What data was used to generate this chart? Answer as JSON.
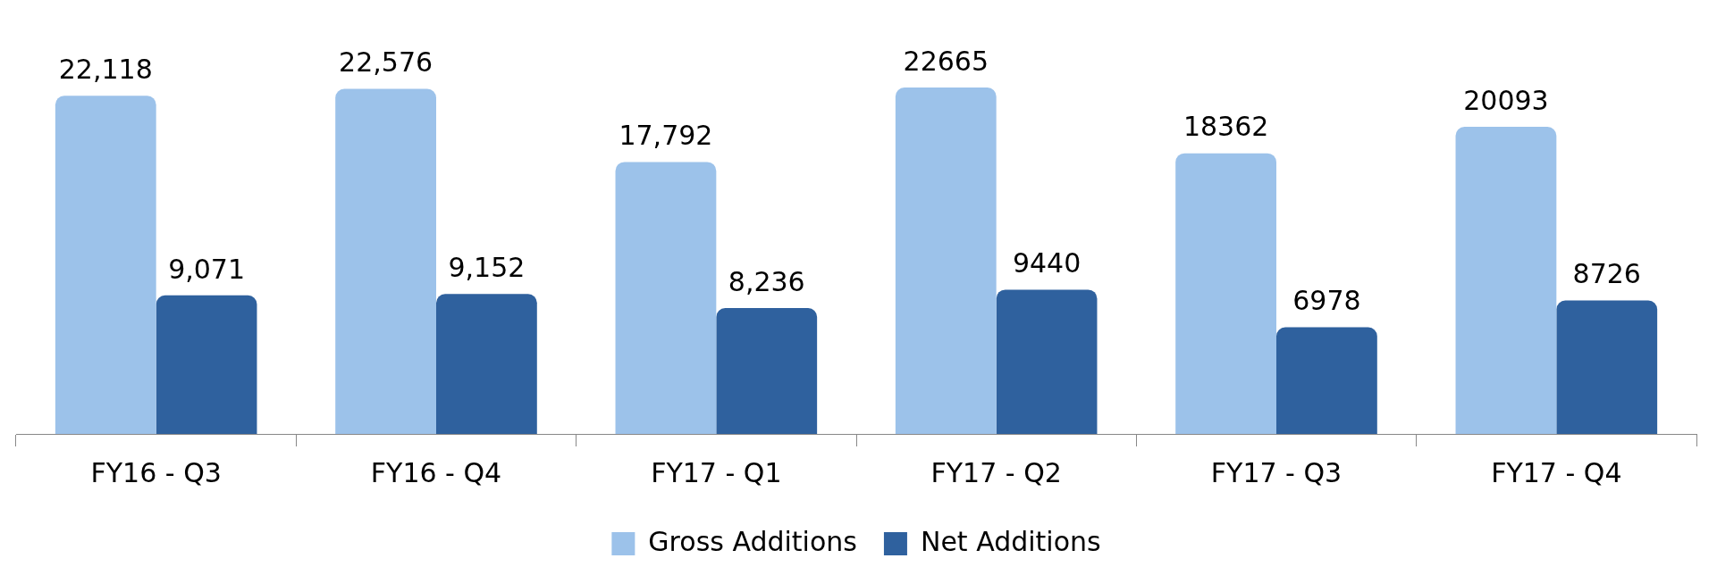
{
  "chart_data": {
    "type": "bar",
    "categories": [
      "FY16 - Q3",
      "FY16 - Q4",
      "FY17 - Q1",
      "FY17 - Q2",
      "FY17 - Q3",
      "FY17 - Q4"
    ],
    "series": [
      {
        "name": "Gross Additions",
        "color": "#9cc2ea",
        "values": [
          22118,
          22576,
          17792,
          22665,
          18362,
          20093
        ],
        "value_labels": [
          "22,118",
          "22,576",
          "17,792",
          "22665",
          "18362",
          "20093"
        ]
      },
      {
        "name": "Net Additions",
        "color": "#2f619e",
        "values": [
          9071,
          9152,
          8236,
          9440,
          6978,
          8726
        ],
        "value_labels": [
          "9,071",
          "9,152",
          "8,236",
          "9440",
          "6978",
          "8726"
        ]
      }
    ],
    "tick_labels": "x",
    "grid": false,
    "legend": "bottom"
  }
}
